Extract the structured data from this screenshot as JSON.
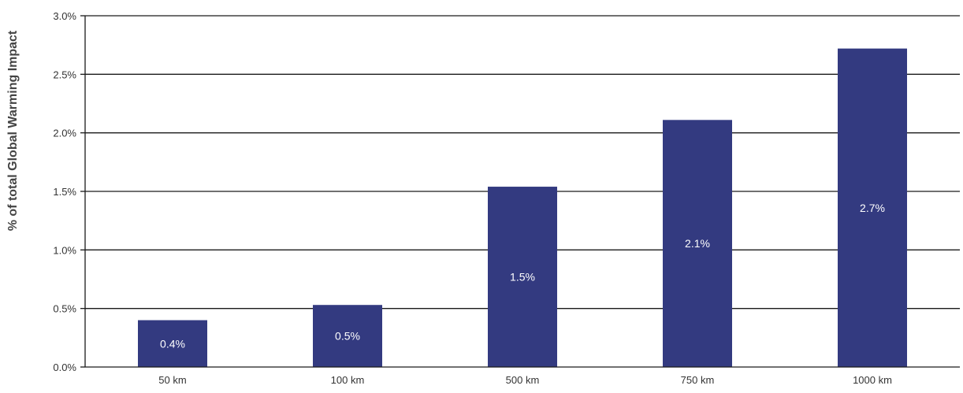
{
  "chart_data": {
    "type": "bar",
    "title": "",
    "xlabel": "",
    "ylabel": "% of total Global Warming Impact",
    "categories": [
      "50 km",
      "100 km",
      "500 km",
      "750 km",
      "1000 km"
    ],
    "values": [
      0.4,
      0.53,
      1.54,
      2.11,
      2.72
    ],
    "data_labels": [
      "0.4%",
      "0.5%",
      "1.5%",
      "2.1%",
      "2.7%"
    ],
    "ylim": [
      0,
      3.0
    ],
    "yticks": [
      0,
      0.5,
      1.0,
      1.5,
      2.0,
      2.5,
      3.0
    ],
    "ytick_labels": [
      "0.0%",
      "0.5%",
      "1.0%",
      "1.5%",
      "2.0%",
      "2.5%",
      "3.0%"
    ],
    "grid": true,
    "legend": "none",
    "colors": {
      "bar": "#333a80",
      "grid": "#1a1a1a",
      "data_label": "#ffffff"
    }
  }
}
